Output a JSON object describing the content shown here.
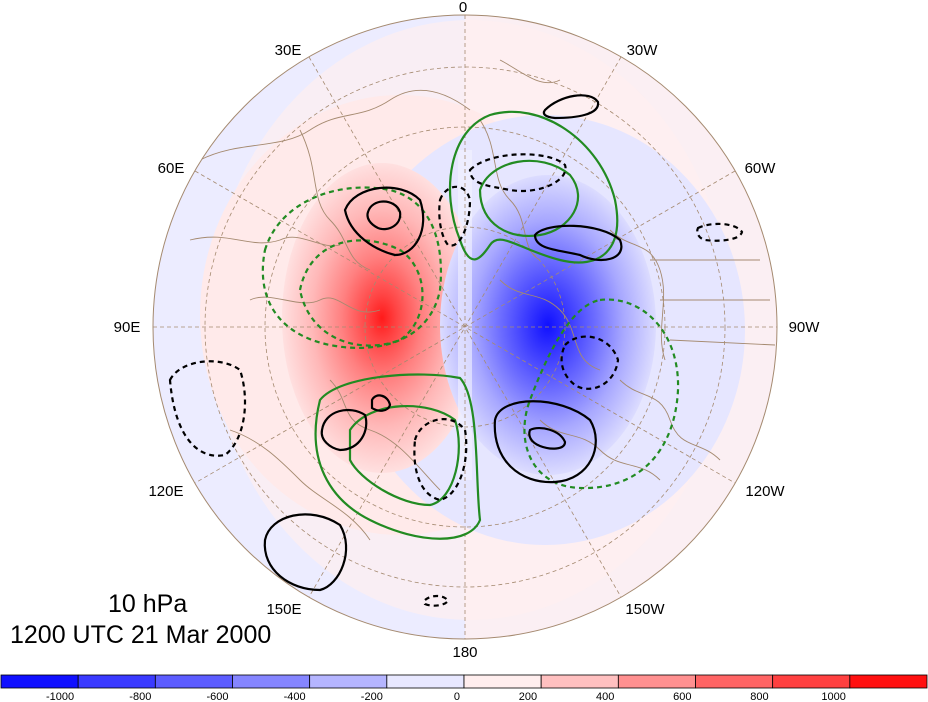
{
  "title": {
    "level": "10 hPa",
    "datetime": "1200 UTC 21 Mar 2000"
  },
  "map": {
    "projection": "north polar stereographic",
    "longitude_labels": [
      {
        "lon": 0,
        "text": "0"
      },
      {
        "lon": -30,
        "text": "30W"
      },
      {
        "lon": -60,
        "text": "60W"
      },
      {
        "lon": -90,
        "text": "90W"
      },
      {
        "lon": -120,
        "text": "120W"
      },
      {
        "lon": -150,
        "text": "150W"
      },
      {
        "lon": 180,
        "text": "180"
      },
      {
        "lon": 150,
        "text": "150E"
      },
      {
        "lon": 120,
        "text": "120E"
      },
      {
        "lon": 90,
        "text": "90E"
      },
      {
        "lon": 60,
        "text": "60E"
      },
      {
        "lon": 30,
        "text": "30E"
      }
    ],
    "colors": {
      "negative": "#3333ff",
      "positive": "#ff2020",
      "coastline": "#a58a70",
      "grid": "#a58a70",
      "contour_solid": "#000000",
      "contour_green": "#228B22"
    }
  },
  "colorbar": {
    "colors": [
      "#1010ff",
      "#3a3aff",
      "#5c5cff",
      "#8585ff",
      "#b5b5ff",
      "#e8e8ff",
      "#ffeeee",
      "#ffc0c0",
      "#ff9090",
      "#ff6464",
      "#ff4040",
      "#ff1010"
    ],
    "labels": [
      "-1000",
      "-800",
      "-600",
      "-400",
      "-200",
      "0",
      "200",
      "400",
      "600",
      "800",
      "1000"
    ]
  }
}
